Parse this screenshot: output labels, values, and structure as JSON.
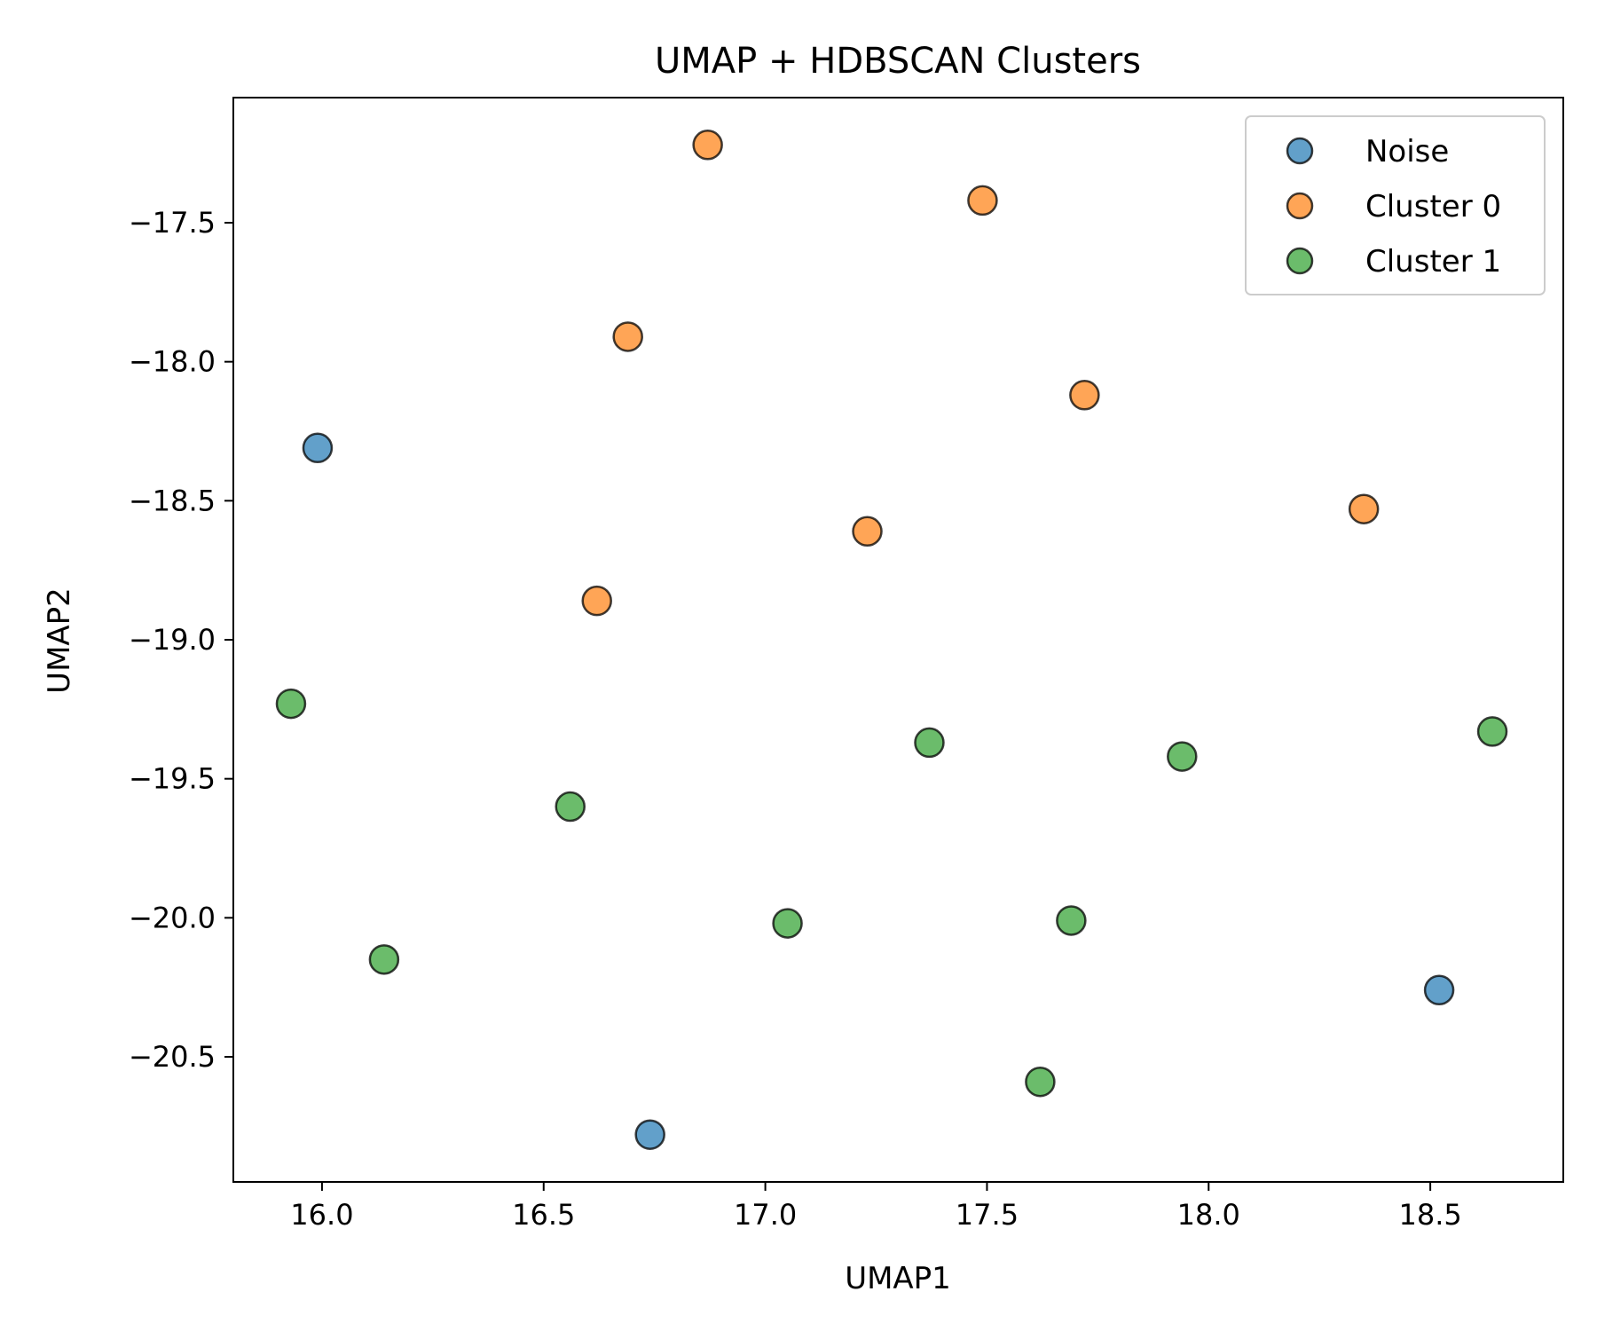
{
  "chart_data": {
    "type": "scatter",
    "title": "UMAP + HDBSCAN Clusters",
    "xlabel": "UMAP1",
    "ylabel": "UMAP2",
    "xlim": [
      15.8,
      18.8
    ],
    "ylim": [
      -20.95,
      -17.05
    ],
    "xticks": [
      16.0,
      16.5,
      17.0,
      17.5,
      18.0,
      18.5
    ],
    "xtick_labels": [
      "16.0",
      "16.5",
      "17.0",
      "17.5",
      "18.0",
      "18.5"
    ],
    "yticks": [
      -17.5,
      -18.0,
      -18.5,
      -19.0,
      -19.5,
      -20.0,
      -20.5
    ],
    "ytick_labels": [
      "−17.5",
      "−18.0",
      "−18.5",
      "−19.0",
      "−19.5",
      "−20.0",
      "−20.5"
    ],
    "grid": false,
    "legend_position": "top-right",
    "series": [
      {
        "name": "Noise",
        "color": "#1f77b4",
        "points": [
          [
            15.99,
            -18.31
          ],
          [
            18.52,
            -20.26
          ],
          [
            16.74,
            -20.78
          ]
        ]
      },
      {
        "name": "Cluster 0",
        "color": "#ff7f0e",
        "points": [
          [
            16.87,
            -17.22
          ],
          [
            17.49,
            -17.42
          ],
          [
            16.69,
            -17.91
          ],
          [
            17.72,
            -18.12
          ],
          [
            18.35,
            -18.53
          ],
          [
            17.23,
            -18.61
          ],
          [
            16.62,
            -18.86
          ]
        ]
      },
      {
        "name": "Cluster 1",
        "color": "#2ca02c",
        "points": [
          [
            15.93,
            -19.23
          ],
          [
            18.64,
            -19.33
          ],
          [
            17.37,
            -19.37
          ],
          [
            17.94,
            -19.42
          ],
          [
            16.56,
            -19.6
          ],
          [
            17.05,
            -20.02
          ],
          [
            17.69,
            -20.01
          ],
          [
            16.14,
            -20.15
          ],
          [
            17.62,
            -20.59
          ]
        ]
      }
    ]
  }
}
